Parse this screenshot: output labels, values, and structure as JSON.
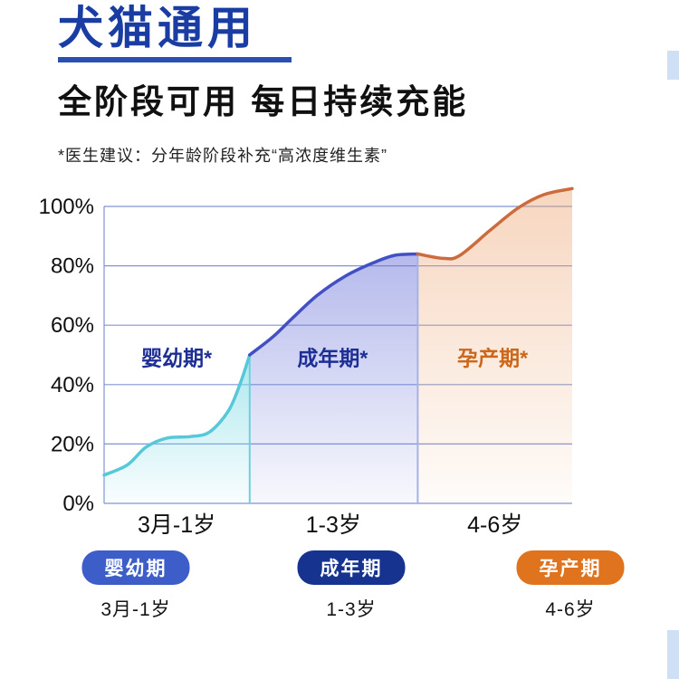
{
  "header": {
    "title": "犬猫通用",
    "subtitle": "全阶段可用 每日持续充能",
    "note": "*医生建议：分年龄阶段补充“高浓度维生素”"
  },
  "colors": {
    "title_blue": "#1a3da3",
    "underline_blue": "#2b4fb0",
    "decor_light_blue": "#cfe0f4"
  },
  "chart_data": {
    "type": "area",
    "title": "",
    "xlabel": "",
    "ylabel": "",
    "ylim": [
      0,
      110
    ],
    "grid": true,
    "grid_color": "#8194d4",
    "text_color": "#0f0f0f",
    "y_axis": {
      "ticks": [
        0,
        20,
        40,
        60,
        80,
        100
      ],
      "tick_labels": [
        "0%",
        "20%",
        "40%",
        "60%",
        "80%",
        "100%"
      ]
    },
    "x_axis": {
      "labels": [
        {
          "text": "3月-1岁",
          "t": 1.55
        },
        {
          "text": "1-3岁",
          "t": 4.9
        },
        {
          "text": "4-6岁",
          "t": 8.35
        }
      ]
    },
    "series": [
      {
        "name": "婴幼期",
        "color": "#56c8d8",
        "fill": "#7fdbe6",
        "fill_opacity_top": 0.65,
        "fill_opacity_bottom": 0.04,
        "points": [
          [
            0,
            9.5
          ],
          [
            0.5,
            13
          ],
          [
            0.9,
            19
          ],
          [
            1.35,
            22
          ],
          [
            1.85,
            22.5
          ],
          [
            2.25,
            24
          ],
          [
            2.65,
            31
          ],
          [
            2.9,
            40
          ],
          [
            3.11,
            50
          ]
        ]
      },
      {
        "name": "成年期",
        "color": "#4350c4",
        "fill": "#6a74d8",
        "fill_opacity_top": 0.5,
        "fill_opacity_bottom": 0.05,
        "points": [
          [
            3.11,
            50
          ],
          [
            3.6,
            56
          ],
          [
            4.0,
            62
          ],
          [
            4.55,
            70
          ],
          [
            5.15,
            76.5
          ],
          [
            5.75,
            81
          ],
          [
            6.2,
            83.5
          ],
          [
            6.7,
            84
          ]
        ]
      },
      {
        "name": "孕产期",
        "color": "#cc6b3c",
        "fill": "#eda471",
        "fill_opacity_top": 0.45,
        "fill_opacity_bottom": 0.04,
        "points": [
          [
            6.7,
            84
          ],
          [
            7.25,
            82.5
          ],
          [
            7.6,
            83.5
          ],
          [
            8.25,
            92
          ],
          [
            8.85,
            99.5
          ],
          [
            9.4,
            104
          ],
          [
            10,
            106
          ]
        ]
      }
    ],
    "dividers": [
      {
        "t": 3.11,
        "pct_top": 50,
        "color": "#6fd0dd"
      },
      {
        "t": 6.7,
        "pct_top": 84,
        "color": "#a3b3e8"
      }
    ],
    "annotations": [
      {
        "text": "婴幼期*",
        "t": 1.55,
        "pct": 49,
        "color": "#1d2f94"
      },
      {
        "text": "成年期*",
        "t": 4.88,
        "pct": 49,
        "color": "#1d2f94"
      },
      {
        "text": "孕产期*",
        "t": 8.3,
        "pct": 49,
        "color": "#cc661a"
      }
    ],
    "legend_position": "bottom"
  },
  "legend": {
    "items": [
      {
        "label": "婴幼期",
        "sub": "3月-1岁",
        "color": "#3d5ec8"
      },
      {
        "label": "成年期",
        "sub": "1-3岁",
        "color": "#16338f"
      },
      {
        "label": "孕产期",
        "sub": "4-6岁",
        "color": "#e0731d"
      }
    ]
  }
}
